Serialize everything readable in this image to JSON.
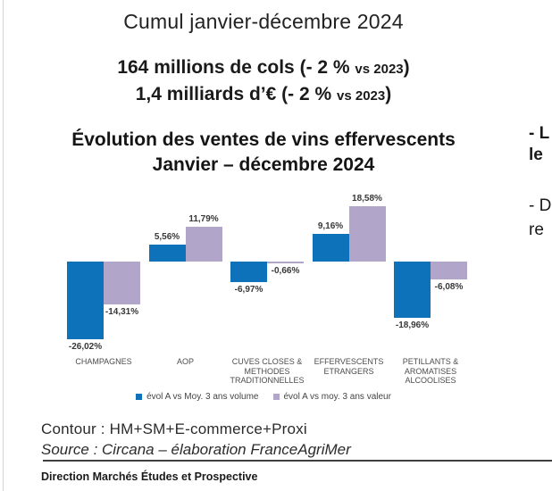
{
  "page": {
    "title": "Cumul janvier-décembre 2024"
  },
  "summary": {
    "line1": {
      "lead": "164 millions de cols (- 2 % ",
      "vs": "vs 2023",
      "close": ")"
    },
    "line2": {
      "lead": "1,4 milliards d’€ (- 2 % ",
      "vs": "vs 2023",
      "close": ")"
    }
  },
  "side_notes": {
    "note1": "- L\nle",
    "note2": "- D\nre"
  },
  "chart_data": {
    "type": "bar",
    "title": "Évolution des ventes de vins effervescents",
    "subtitle": "Janvier – décembre 2024",
    "categories": [
      "CHAMPAGNES",
      "AOP",
      "CUVES CLOSES & METHODES TRADITIONNELLES",
      "EFFERVESCENTS ETRANGERS",
      "PETILLANTS & AROMATISES ALCOOLISES"
    ],
    "series": [
      {
        "name": "évol A vs Moy. 3 ans volume",
        "color": "#0d72b9",
        "values": [
          -26.02,
          5.56,
          -6.97,
          9.16,
          -18.96
        ],
        "labels": [
          "-26,02%",
          "5,56%",
          "-6,97%",
          "9,16%",
          "-18,96%"
        ]
      },
      {
        "name": "évol A vs moy. 3 ans valeur",
        "color": "#b1a5c9",
        "values": [
          -14.31,
          11.79,
          -0.66,
          18.58,
          -6.08
        ],
        "labels": [
          "-14,31%",
          "11,79%",
          "-0,66%",
          "18,58%",
          "-6,08%"
        ]
      }
    ],
    "ylim": [
      -30,
      22
    ],
    "grid": false,
    "legend_position": "bottom"
  },
  "footer": {
    "contour": "Contour : HM+SM+E-commerce+Proxi",
    "source": "Source : Circana – élaboration FranceAgriMer",
    "department": "Direction Marchés Études et Prospective"
  }
}
